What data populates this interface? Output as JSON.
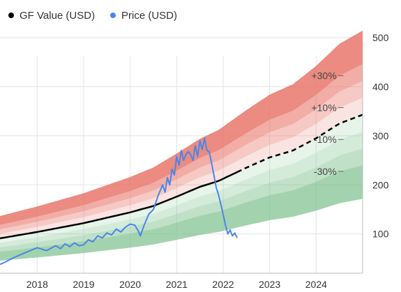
{
  "chart_data": {
    "type": "line",
    "legend": {
      "position": "top-left",
      "entries": [
        {
          "name": "GF Value (USD)",
          "color": "#000000"
        },
        {
          "name": "Price (USD)",
          "color": "#4a86e8"
        }
      ]
    },
    "x_ticks": [
      "2018",
      "2019",
      "2020",
      "2021",
      "2022",
      "2023",
      "2024"
    ],
    "y_ticks": [
      100,
      200,
      300,
      400,
      500
    ],
    "xlim": [
      2017.2,
      2025.0
    ],
    "ylim": [
      20,
      520
    ],
    "grid": {
      "horizontal": true,
      "vertical": true
    },
    "colors": {
      "price": "#4a86e8",
      "gf_value": "#000000",
      "over_band": "#e8776b",
      "under_band": "#7cc08c"
    },
    "band_labels": [
      "+30%",
      "+10%",
      "-10%",
      "-30%"
    ],
    "gf_value": {
      "x": [
        2017.2,
        2018.0,
        2019.0,
        2020.0,
        2020.5,
        2021.0,
        2021.5,
        2021.9,
        2022.5,
        2023.0,
        2023.5,
        2024.0,
        2024.5,
        2025.0
      ],
      "y": [
        91,
        104,
        122,
        144,
        157,
        176,
        196,
        208,
        235,
        256,
        270,
        295,
        325,
        343
      ],
      "projected_from": 2022.3
    },
    "price": {
      "x": [
        2017.2,
        2017.3,
        2017.5,
        2017.7,
        2017.9,
        2018.0,
        2018.2,
        2018.4,
        2018.5,
        2018.6,
        2018.7,
        2018.8,
        2018.9,
        2019.0,
        2019.1,
        2019.2,
        2019.3,
        2019.4,
        2019.5,
        2019.6,
        2019.7,
        2019.8,
        2019.9,
        2020.0,
        2020.1,
        2020.18,
        2020.22,
        2020.3,
        2020.4,
        2020.5,
        2020.6,
        2020.7,
        2020.75,
        2020.8,
        2020.85,
        2020.9,
        2020.95,
        2021.0,
        2021.05,
        2021.1,
        2021.15,
        2021.2,
        2021.25,
        2021.3,
        2021.35,
        2021.4,
        2021.45,
        2021.5,
        2021.55,
        2021.6,
        2021.65,
        2021.7,
        2021.75,
        2021.8,
        2021.85,
        2021.9,
        2021.95,
        2022.0,
        2022.05,
        2022.1,
        2022.15,
        2022.2,
        2022.25,
        2022.3
      ],
      "y": [
        38,
        42,
        52,
        60,
        68,
        72,
        66,
        76,
        70,
        80,
        74,
        82,
        76,
        78,
        88,
        84,
        96,
        92,
        102,
        98,
        110,
        104,
        114,
        120,
        118,
        105,
        96,
        118,
        140,
        150,
        178,
        200,
        185,
        215,
        200,
        232,
        220,
        258,
        240,
        270,
        250,
        262,
        268,
        262,
        250,
        280,
        258,
        290,
        272,
        295,
        270,
        268,
        245,
        220,
        195,
        180,
        160,
        140,
        118,
        100,
        108,
        96,
        102,
        92
      ]
    }
  }
}
